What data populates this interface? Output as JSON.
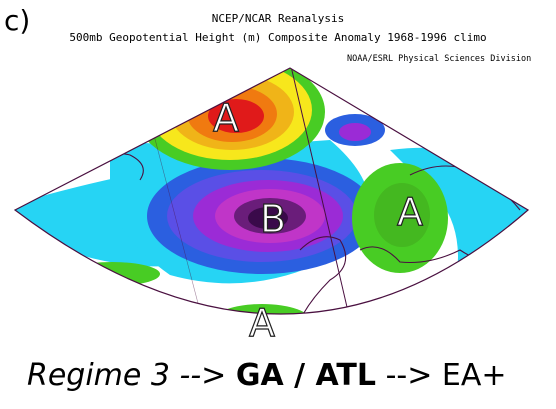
{
  "panel_label": "c)",
  "map": {
    "title_line1": "NCEP/NCAR Reanalysis",
    "title_line2": "500mb Geopotential Height (m) Composite Anomaly 1968-1996 climo",
    "credit": "NOAA/ESRL Physical Sciences Division",
    "centers": [
      {
        "label": "A",
        "type": "anticyclone",
        "location": "Greenland"
      },
      {
        "label": "B",
        "type": "cyclone",
        "location": "central North Atlantic"
      },
      {
        "label": "A",
        "type": "anticyclone",
        "location": "Europe"
      },
      {
        "label": "A",
        "type": "anticyclone",
        "location": "subtropical Atlantic"
      }
    ],
    "colors": {
      "positive_strong": "#e01a1a",
      "positive_orange": "#f07a10",
      "positive_yellow": "#f7e71c",
      "positive_green": "#48cc24",
      "neutral": "#ffffff",
      "negative_light": "#26d4f4",
      "negative_blue": "#2b5fe0",
      "negative_purple": "#9b2bd6",
      "negative_dark": "#3a0a4a",
      "coastline": "#4a1040"
    }
  },
  "caption": {
    "prefix": "Regime 3 -->",
    "middle": "GA / ATL",
    "suffix": "--> EA+"
  }
}
